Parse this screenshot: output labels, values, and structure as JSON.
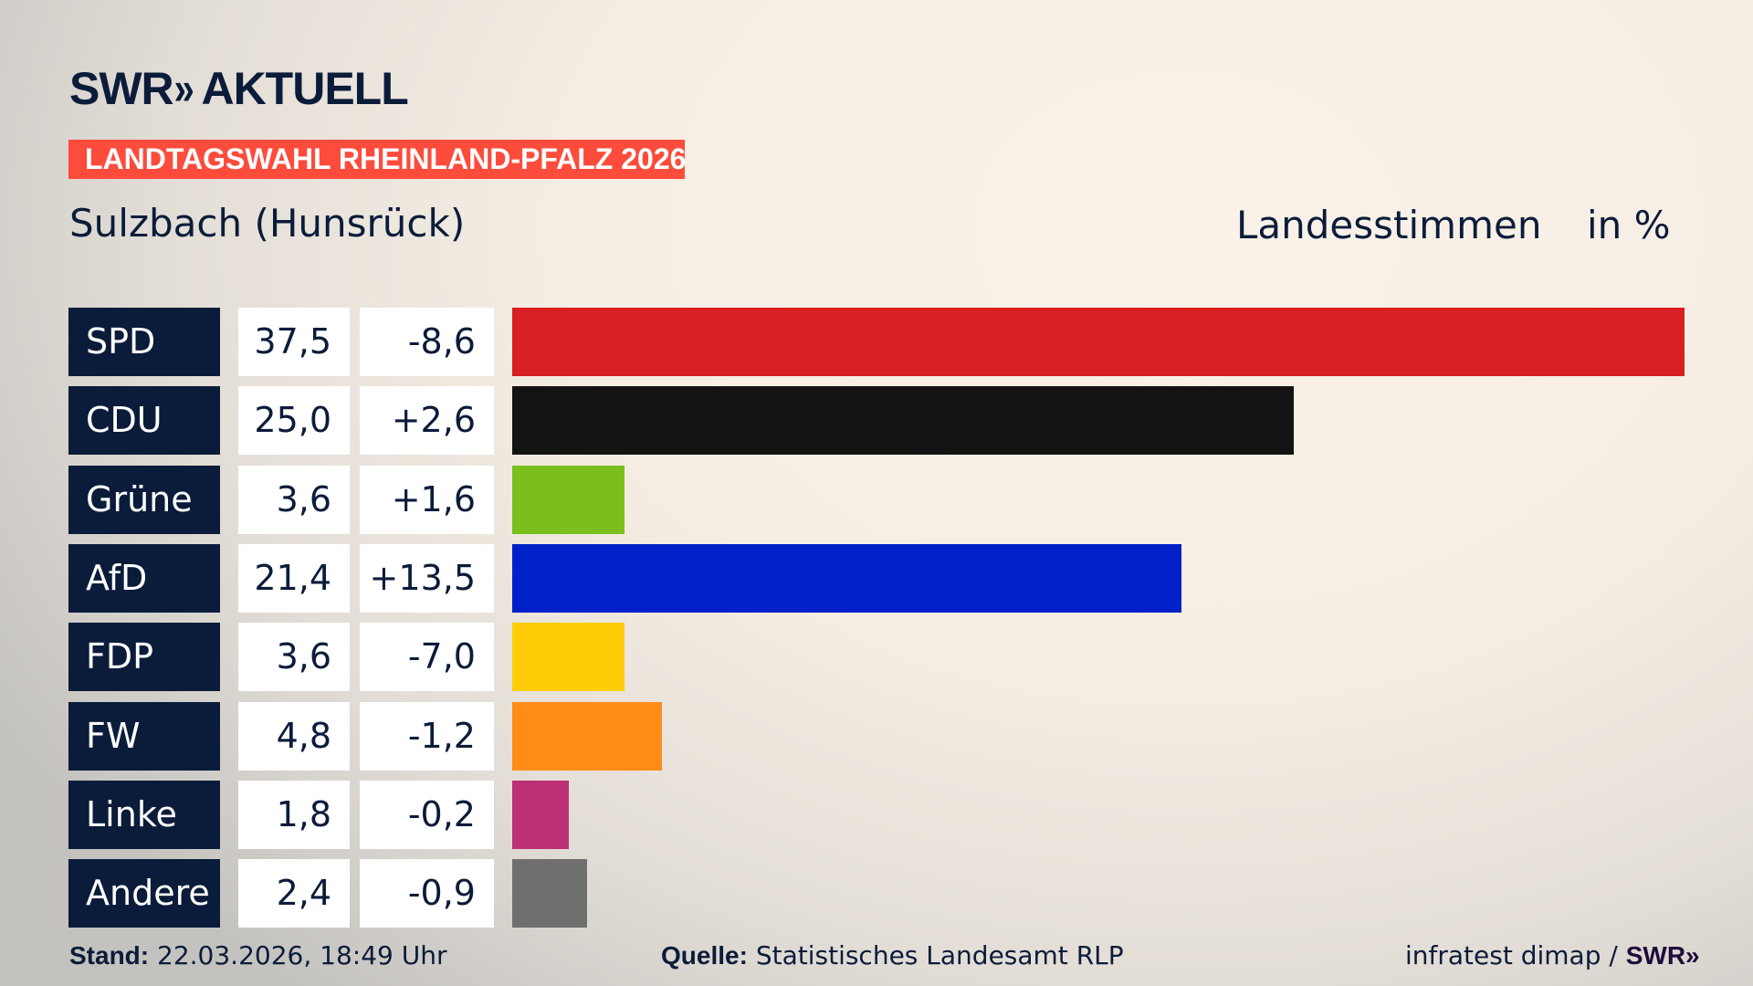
{
  "header": {
    "logo_brand": "SWR",
    "logo_chevrons": "»",
    "logo_product": "AKTUELL",
    "banner": "LANDTAGSWAHL RHEINLAND-PFALZ 2026",
    "region": "Sulzbach (Hunsrück)",
    "measure": "Landesstimmen",
    "unit": "in %"
  },
  "chart_data": {
    "type": "bar",
    "orientation": "horizontal",
    "categories": [
      "SPD",
      "CDU",
      "Grüne",
      "AfD",
      "FDP",
      "FW",
      "Linke",
      "Andere"
    ],
    "values": [
      37.5,
      25.0,
      3.6,
      21.4,
      3.6,
      4.8,
      1.8,
      2.4
    ],
    "value_labels": [
      "37,5",
      "25,0",
      "3,6",
      "21,4",
      "3,6",
      "4,8",
      "1,8",
      "2,4"
    ],
    "change_labels": [
      "-8,6",
      "+2,6",
      "+1,6",
      "+13,5",
      "-7,0",
      "-1,2",
      "-0,2",
      "-0,9"
    ],
    "changes": [
      -8.6,
      2.6,
      1.6,
      13.5,
      -7.0,
      -1.2,
      -0.2,
      -0.9
    ],
    "colors": [
      "#d81f21",
      "#131313",
      "#7abf1c",
      "#0021c8",
      "#ffcd07",
      "#ff8c17",
      "#bd3075",
      "#6f6f6f"
    ],
    "xlim": [
      0,
      37.5
    ],
    "grid": false
  },
  "footer": {
    "stand_label": "Stand:",
    "stand_value": "22.03.2026, 18:49 Uhr",
    "source_label": "Quelle:",
    "source_value": "Statistisches Landesamt RLP",
    "credit": "infratest dimap /",
    "credit_brand": "SWR»"
  }
}
